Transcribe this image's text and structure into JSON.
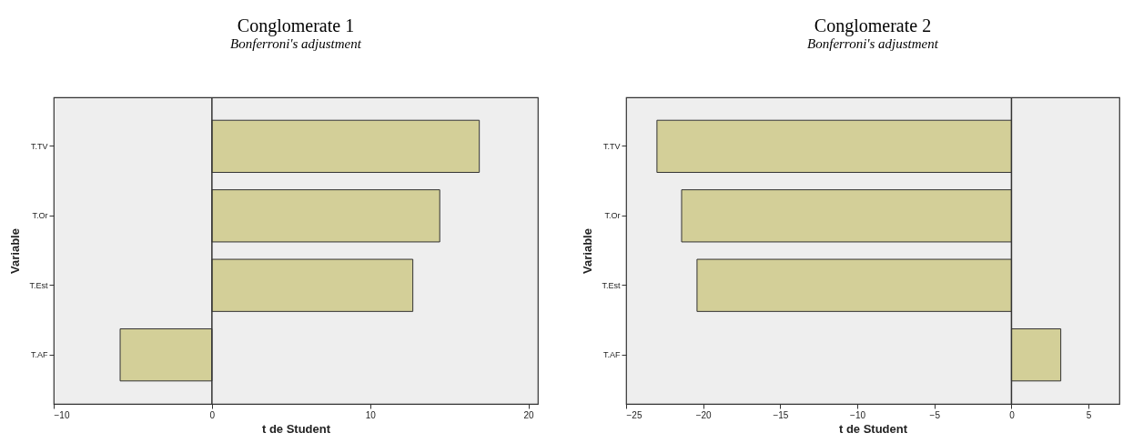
{
  "chart_data": [
    {
      "type": "bar",
      "orientation": "horizontal",
      "title": "Conglomerate 1",
      "subtitle": "Bonferroni's adjustment",
      "xlabel": "t de Student",
      "ylabel": "Variable",
      "categories": [
        "T.TV",
        "T.Or",
        "T.Est",
        "T.AF"
      ],
      "values": [
        16.9,
        14.4,
        12.7,
        -5.8
      ],
      "color": "#d3cf98",
      "xlim": [
        -10,
        20.6
      ],
      "xticks": [
        -10,
        0,
        10,
        20
      ],
      "ref_lines": [
        {
          "axis": "x",
          "value": 0,
          "color": "#333333"
        }
      ],
      "grid": false
    },
    {
      "type": "bar",
      "orientation": "horizontal",
      "title": "Conglomerate 2",
      "subtitle": "Bonferroni's adjustment",
      "xlabel": "t de Student",
      "ylabel": "Variable",
      "categories": [
        "T.TV",
        "T.Or",
        "T.Est",
        "T.AF"
      ],
      "values": [
        -23.0,
        -21.4,
        -20.4,
        3.2
      ],
      "color": "#d3cf98",
      "xlim": [
        -25,
        7
      ],
      "xticks": [
        -25,
        -20,
        -15,
        -10,
        -5,
        0,
        5
      ],
      "ref_lines": [
        {
          "axis": "x",
          "value": 0,
          "color": "#333333"
        }
      ],
      "grid": false
    }
  ]
}
